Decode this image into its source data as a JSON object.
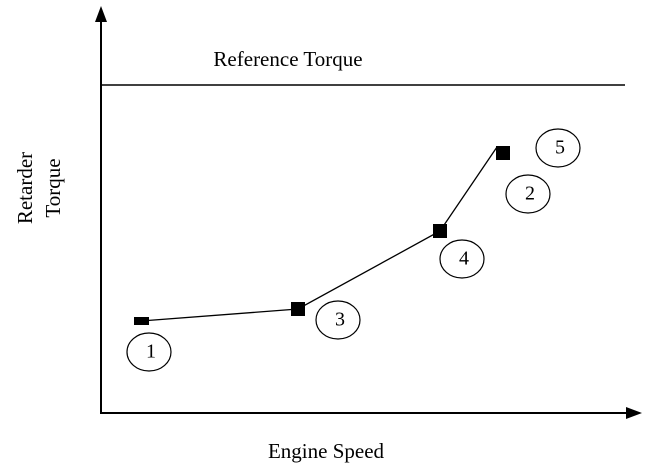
{
  "reference_line": "Reference Torque",
  "x_axis_label": "Engine Speed",
  "y_axis_label": [
    "Retarder",
    "Torque"
  ],
  "callouts": [
    "1",
    "3",
    "4",
    "2",
    "5"
  ]
}
